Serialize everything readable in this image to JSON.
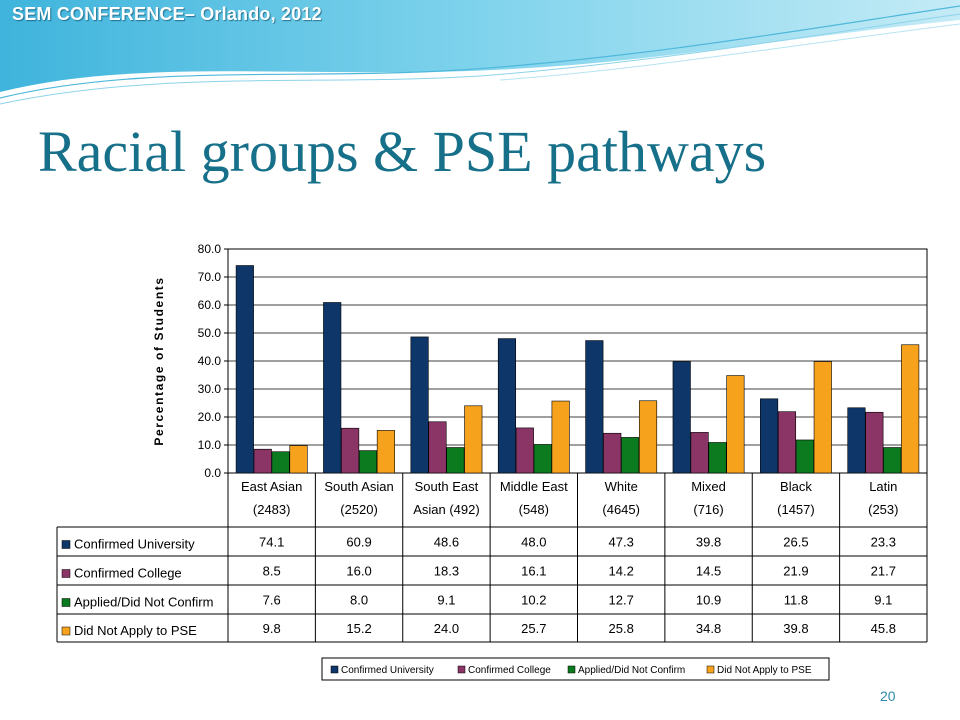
{
  "header": {
    "conference": "SEM CONFERENCE– Orlando, 2012"
  },
  "slide": {
    "title": "Racial groups & PSE pathways",
    "number": "20"
  },
  "colors": {
    "title": "#17708a",
    "series": [
      "#0e3668",
      "#8b3466",
      "#0c7a1e",
      "#f7a21c"
    ],
    "header_wave": "#59c5e3"
  },
  "chart_data": {
    "type": "bar",
    "ylabel": "Percentage of Students",
    "xlabel": "",
    "ylim": [
      0,
      80
    ],
    "yticks": [
      "0.0",
      "10.0",
      "20.0",
      "30.0",
      "40.0",
      "50.0",
      "60.0",
      "70.0",
      "80.0"
    ],
    "grid": true,
    "categories": [
      [
        "East Asian",
        "(2483)"
      ],
      [
        "South Asian",
        "(2520)"
      ],
      [
        "South East",
        "Asian (492)"
      ],
      [
        "Middle East",
        "(548)"
      ],
      [
        "White",
        "(4645)"
      ],
      [
        "Mixed",
        "(716)"
      ],
      [
        "Black",
        "(1457)"
      ],
      [
        "Latin",
        "(253)"
      ]
    ],
    "series": [
      {
        "name": "Confirmed University",
        "legend_name": "Confirmed University",
        "color": "#0e3668",
        "values": [
          74.1,
          60.9,
          48.6,
          48.0,
          47.3,
          39.8,
          26.5,
          23.3
        ],
        "labels": [
          "74.1",
          "60.9",
          "48.6",
          "48.0",
          "47.3",
          "39.8",
          "26.5",
          "23.3"
        ]
      },
      {
        "name": "Confirmed College",
        "legend_name": "Confirmed College",
        "color": "#8b3466",
        "values": [
          8.5,
          16.0,
          18.3,
          16.1,
          14.2,
          14.5,
          21.9,
          21.7
        ],
        "labels": [
          "8.5",
          "16.0",
          "18.3",
          "16.1",
          "14.2",
          "14.5",
          "21.9",
          "21.7"
        ]
      },
      {
        "name": "Applied/Did Not Confirm",
        "legend_name": "Applied/Did Not Confirm",
        "color": "#0c7a1e",
        "values": [
          7.6,
          8.0,
          9.1,
          10.2,
          12.7,
          10.9,
          11.8,
          9.1
        ],
        "labels": [
          "7.6",
          "8.0",
          "9.1",
          "10.2",
          "12.7",
          "10.9",
          "11.8",
          "9.1"
        ]
      },
      {
        "name": "Did Not Apply to PSE",
        "legend_name": "Did Not Apply to PSE",
        "color": "#f7a21c",
        "values": [
          9.8,
          15.2,
          24.0,
          25.7,
          25.8,
          34.8,
          39.8,
          45.8
        ],
        "labels": [
          "9.8",
          "15.2",
          "24.0",
          "25.7",
          "25.8",
          "34.8",
          "39.8",
          "45.8"
        ]
      }
    ],
    "legend_position": "bottom"
  }
}
